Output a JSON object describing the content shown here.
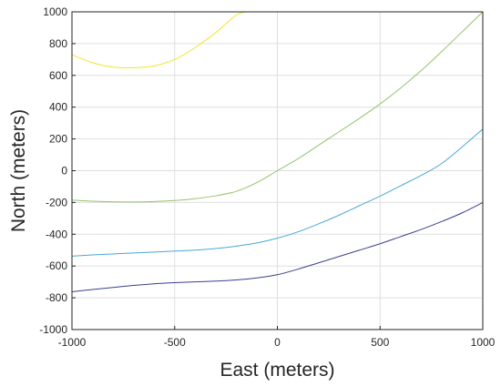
{
  "chart_data": {
    "type": "line",
    "xlabel": "East (meters)",
    "ylabel": "North (meters)",
    "xlim": [
      -1000,
      1000
    ],
    "ylim": [
      -1000,
      1000
    ],
    "xticks": [
      -1000,
      -500,
      0,
      500,
      1000
    ],
    "yticks": [
      -1000,
      -800,
      -600,
      -400,
      -200,
      0,
      200,
      400,
      600,
      800,
      1000
    ],
    "grid": true,
    "series": [
      {
        "color": "#f2e52a",
        "x": [
          -1000,
          -900,
          -800,
          -700,
          -600,
          -500,
          -400,
          -300,
          -200,
          -150
        ],
        "y": [
          730,
          680,
          652,
          648,
          660,
          700,
          775,
          870,
          980,
          1000
        ]
      },
      {
        "color": "#93c46b",
        "x": [
          -1000,
          -900,
          -800,
          -700,
          -600,
          -500,
          -400,
          -300,
          -200,
          -100,
          0,
          100,
          200,
          300,
          400,
          500,
          600,
          700,
          800,
          900,
          1000
        ],
        "y": [
          -185,
          -192,
          -196,
          -197,
          -194,
          -188,
          -176,
          -158,
          -130,
          -75,
          0,
          75,
          160,
          245,
          330,
          420,
          520,
          630,
          750,
          875,
          1000
        ]
      },
      {
        "color": "#49a8d4",
        "x": [
          -1000,
          -900,
          -800,
          -700,
          -600,
          -500,
          -400,
          -300,
          -200,
          -100,
          0,
          100,
          200,
          300,
          400,
          500,
          600,
          700,
          800,
          900,
          1000
        ],
        "y": [
          -538,
          -530,
          -524,
          -518,
          -512,
          -506,
          -500,
          -490,
          -475,
          -455,
          -425,
          -385,
          -335,
          -280,
          -220,
          -160,
          -95,
          -30,
          45,
          150,
          262
        ]
      },
      {
        "color": "#3b3f8f",
        "x": [
          -1000,
          -900,
          -800,
          -700,
          -600,
          -500,
          -400,
          -300,
          -200,
          -100,
          0,
          100,
          200,
          300,
          400,
          500,
          600,
          700,
          800,
          900,
          1000
        ],
        "y": [
          -762,
          -748,
          -735,
          -722,
          -712,
          -705,
          -700,
          -695,
          -688,
          -675,
          -655,
          -620,
          -580,
          -540,
          -500,
          -460,
          -415,
          -370,
          -320,
          -265,
          -200
        ]
      }
    ]
  }
}
